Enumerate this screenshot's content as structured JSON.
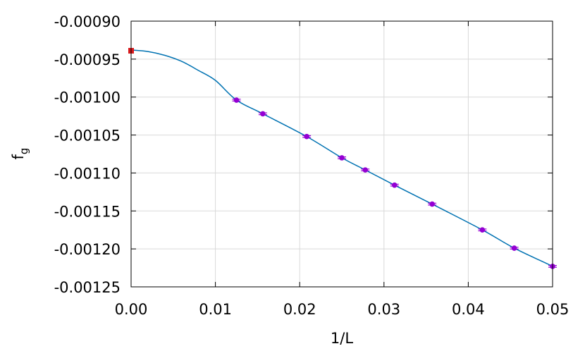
{
  "chart_data": {
    "type": "scatter",
    "xlabel": "1/L",
    "ylabel": {
      "base": "f",
      "subscript": "g"
    },
    "xlim": [
      0.0,
      0.05
    ],
    "ylim": [
      -0.00125,
      -0.0009
    ],
    "grid": true,
    "x_ticks": [
      "0.00",
      "0.01",
      "0.02",
      "0.03",
      "0.04",
      "0.05"
    ],
    "y_ticks": [
      "-0.00090",
      "-0.00095",
      "-0.00100",
      "-0.00105",
      "-0.00110",
      "-0.00115",
      "-0.00120",
      "-0.00125"
    ],
    "series": [
      {
        "kind": "points-with-errorbars",
        "color": "#9400d3",
        "x": [
          0.0125,
          0.015625,
          0.020833,
          0.025,
          0.027778,
          0.03125,
          0.035714,
          0.041667,
          0.045455,
          0.05
        ],
        "y": [
          -0.001004,
          -0.001022,
          -0.001052,
          -0.00108,
          -0.001096,
          -0.001116,
          -0.001141,
          -0.001175,
          -0.001199,
          -0.001223
        ],
        "yerr": [
          1.2e-06,
          1.2e-06,
          1.2e-06,
          1.2e-06,
          1.2e-06,
          1.2e-06,
          1.2e-06,
          1.2e-06,
          1.2e-06,
          1.2e-06
        ]
      },
      {
        "kind": "fit-line",
        "color": "#0072b2",
        "x": [
          0.0,
          0.002,
          0.004,
          0.006,
          0.008,
          0.01,
          0.0125,
          0.015625,
          0.020833,
          0.025,
          0.027778,
          0.03125,
          0.035714,
          0.041667,
          0.045455,
          0.05,
          0.051
        ],
        "y": [
          -0.000938,
          -0.00094,
          -0.000945,
          -0.000953,
          -0.000965,
          -0.000978,
          -0.001004,
          -0.001022,
          -0.001052,
          -0.00108,
          -0.001096,
          -0.001116,
          -0.001141,
          -0.001175,
          -0.001199,
          -0.001223,
          -0.00123
        ]
      },
      {
        "kind": "extrapolated-point",
        "color": "#d7191c",
        "x": [
          0.0
        ],
        "y": [
          -0.000939
        ]
      }
    ]
  }
}
